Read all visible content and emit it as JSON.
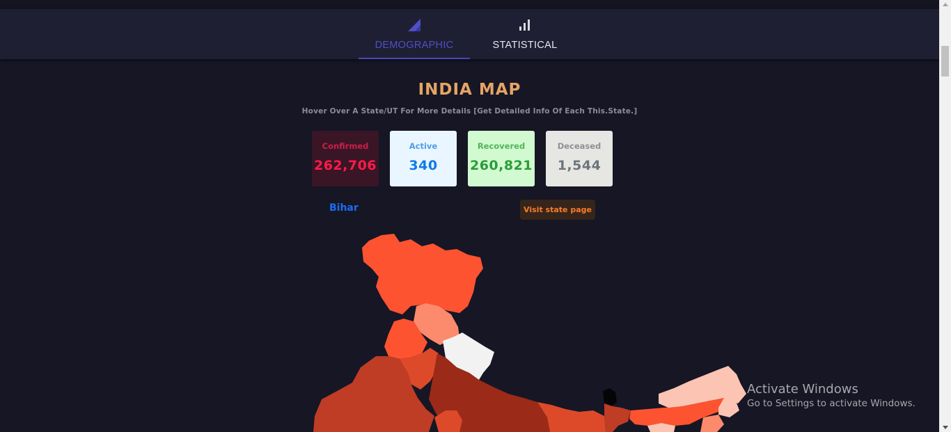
{
  "tabs": [
    {
      "label": "DEMOGRAPHIC",
      "icon": "triangle-chart-icon",
      "active": true
    },
    {
      "label": "STATISTICAL",
      "icon": "bar-chart-icon",
      "active": false
    }
  ],
  "map_title": "INDIA MAP",
  "map_subtitle": "Hover Over A State/UT For More Details [Get Detailed Info Of Each This.State.]",
  "stats": {
    "confirmed": {
      "label": "Confirmed",
      "value": "262,706"
    },
    "active": {
      "label": "Active",
      "value": "340"
    },
    "recovered": {
      "label": "Recovered",
      "value": "260,821"
    },
    "deceased": {
      "label": "Deceased",
      "value": "1,544"
    }
  },
  "selected_state": "Bihar",
  "visit_button": "Visit state page",
  "watermark": {
    "line1": "Activate Windows",
    "line2": "Go to Settings to activate Windows."
  },
  "colors": {
    "accent": "#4f4fc6",
    "title": "#e6a463",
    "map_dark": "#9b2b18",
    "map_mid": "#bf3c25",
    "map_bright": "#fd5330",
    "map_light": "#fc8a6c",
    "map_pale": "#fcc4b3"
  }
}
